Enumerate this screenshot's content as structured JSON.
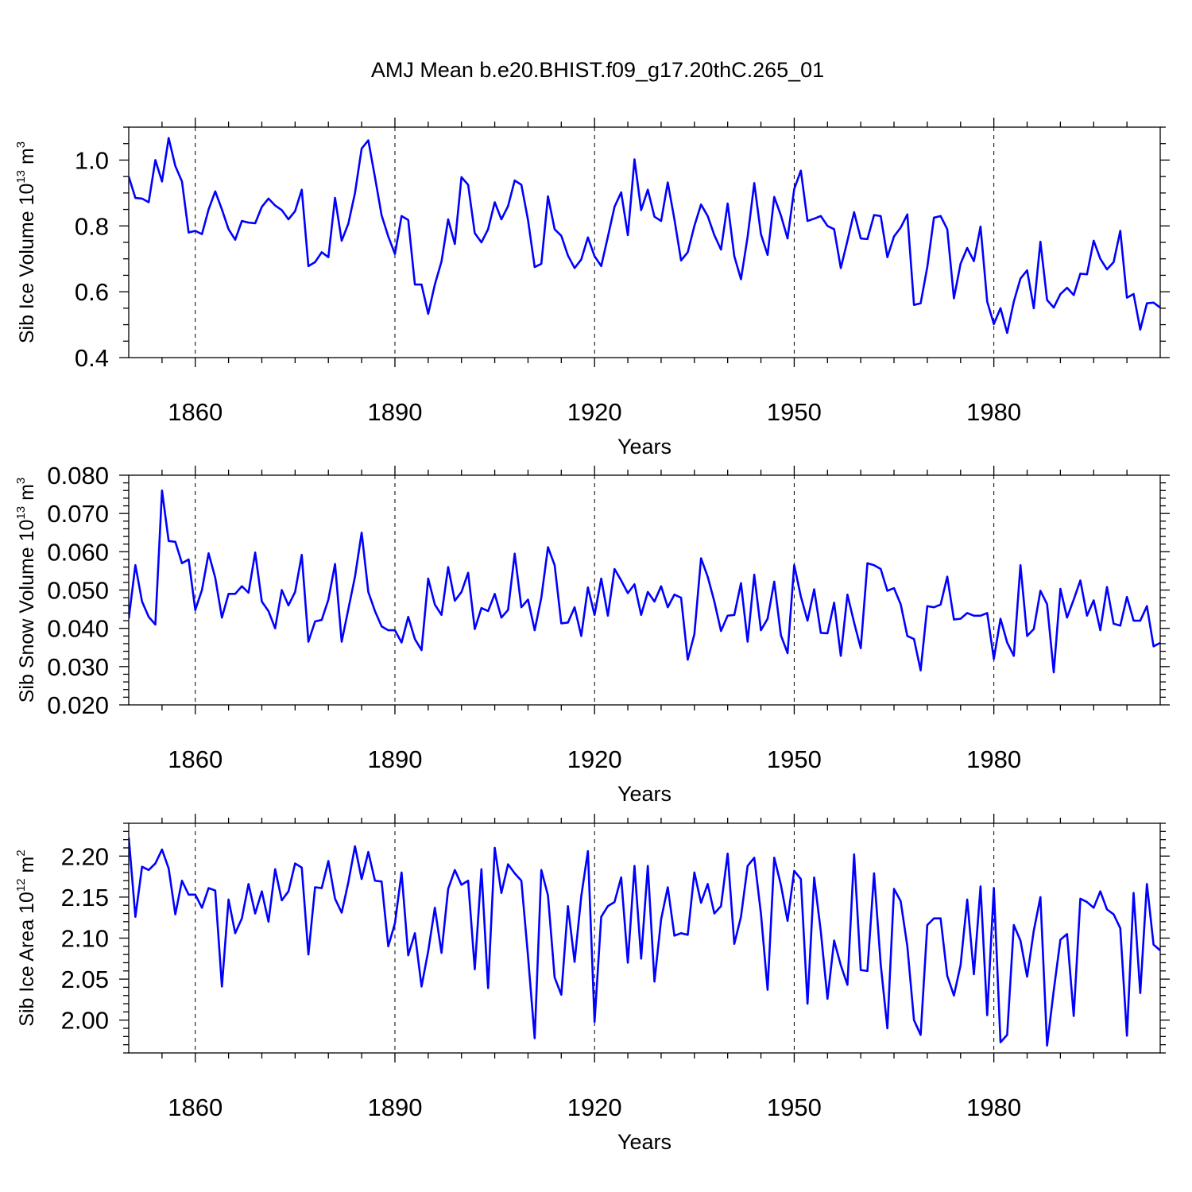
{
  "title": "AMJ Mean b.e20.BHIST.f09_g17.20thC.265_01",
  "chart_data": [
    {
      "type": "line",
      "title": "AMJ Mean b.e20.BHIST.f09_g17.20thC.265_01",
      "xlabel": "Years",
      "ylabel": "Sib Ice Volume 10",
      "ylabel_exp": "13",
      "ylabel_unit": " m",
      "ylabel_unit_exp": "3",
      "xlim": [
        1850,
        2005
      ],
      "ylim": [
        0.4,
        1.1
      ],
      "x_start": 1850,
      "xticks": [
        1860,
        1890,
        1920,
        1950,
        1980
      ],
      "xtick_labels": [
        "1860",
        "1890",
        "1920",
        "1950",
        "1980"
      ],
      "yticks": [
        0.4,
        0.6,
        0.8,
        1.0
      ],
      "ytick_labels": [
        "0.4",
        "0.6",
        "0.8",
        "1.0"
      ],
      "yminor": 0.05,
      "color": "#0000ff",
      "values": [
        0.95,
        0.885,
        0.883,
        0.872,
        1.0,
        0.935,
        1.067,
        0.982,
        0.935,
        0.78,
        0.785,
        0.775,
        0.85,
        0.905,
        0.85,
        0.79,
        0.758,
        0.815,
        0.81,
        0.808,
        0.858,
        0.883,
        0.862,
        0.848,
        0.82,
        0.845,
        0.91,
        0.678,
        0.69,
        0.72,
        0.705,
        0.885,
        0.755,
        0.807,
        0.9,
        1.035,
        1.06,
        0.948,
        0.832,
        0.768,
        0.715,
        0.83,
        0.818,
        0.622,
        0.622,
        0.533,
        0.622,
        0.692,
        0.82,
        0.745,
        0.948,
        0.925,
        0.778,
        0.75,
        0.79,
        0.872,
        0.82,
        0.86,
        0.938,
        0.925,
        0.818,
        0.675,
        0.685,
        0.89,
        0.79,
        0.77,
        0.71,
        0.672,
        0.698,
        0.765,
        0.708,
        0.678,
        0.767,
        0.858,
        0.902,
        0.772,
        1.002,
        0.848,
        0.91,
        0.828,
        0.815,
        0.932,
        0.82,
        0.695,
        0.72,
        0.8,
        0.865,
        0.83,
        0.772,
        0.728,
        0.868,
        0.708,
        0.638,
        0.767,
        0.93,
        0.775,
        0.712,
        0.888,
        0.832,
        0.762,
        0.912,
        0.968,
        0.815,
        0.822,
        0.83,
        0.8,
        0.79,
        0.672,
        0.755,
        0.842,
        0.762,
        0.76,
        0.833,
        0.83,
        0.705,
        0.768,
        0.795,
        0.835,
        0.56,
        0.565,
        0.675,
        0.825,
        0.83,
        0.79,
        0.58,
        0.685,
        0.733,
        0.693,
        0.798,
        0.57,
        0.502,
        0.55,
        0.475,
        0.57,
        0.64,
        0.665,
        0.55,
        0.752,
        0.575,
        0.552,
        0.593,
        0.612,
        0.59,
        0.655,
        0.653,
        0.755,
        0.7,
        0.668,
        0.69,
        0.785,
        0.582,
        0.593,
        0.485,
        0.565,
        0.567,
        0.552
      ]
    },
    {
      "type": "line",
      "xlabel": "Years",
      "ylabel": "Sib Snow Volume 10",
      "ylabel_exp": "13",
      "ylabel_unit": " m",
      "ylabel_unit_exp": "3",
      "xlim": [
        1850,
        2005
      ],
      "ylim": [
        0.02,
        0.08
      ],
      "x_start": 1850,
      "xticks": [
        1860,
        1890,
        1920,
        1950,
        1980
      ],
      "xtick_labels": [
        "1860",
        "1890",
        "1920",
        "1950",
        "1980"
      ],
      "yticks": [
        0.02,
        0.03,
        0.04,
        0.05,
        0.06,
        0.07,
        0.08
      ],
      "ytick_labels": [
        "0.020",
        "0.030",
        "0.040",
        "0.050",
        "0.060",
        "0.070",
        "0.080"
      ],
      "yminor": 0.002,
      "color": "#0000ff",
      "values": [
        0.0425,
        0.0565,
        0.047,
        0.043,
        0.041,
        0.076,
        0.0628,
        0.0626,
        0.057,
        0.058,
        0.0448,
        0.05,
        0.0596,
        0.0532,
        0.0428,
        0.049,
        0.049,
        0.051,
        0.0493,
        0.0598,
        0.047,
        0.0445,
        0.04,
        0.05,
        0.046,
        0.0495,
        0.0592,
        0.0365,
        0.0418,
        0.0422,
        0.0475,
        0.0568,
        0.0365,
        0.045,
        0.0535,
        0.065,
        0.0495,
        0.0445,
        0.0405,
        0.0395,
        0.0395,
        0.0363,
        0.043,
        0.0372,
        0.0343,
        0.053,
        0.0462,
        0.0435,
        0.056,
        0.0472,
        0.0495,
        0.0545,
        0.0398,
        0.0453,
        0.0445,
        0.049,
        0.0428,
        0.0448,
        0.0595,
        0.0455,
        0.0475,
        0.0395,
        0.048,
        0.0612,
        0.0565,
        0.0413,
        0.0415,
        0.0455,
        0.038,
        0.0507,
        0.0435,
        0.053,
        0.0433,
        0.0555,
        0.0525,
        0.0492,
        0.0515,
        0.0435,
        0.0495,
        0.047,
        0.051,
        0.0455,
        0.0488,
        0.048,
        0.0318,
        0.0385,
        0.0583,
        0.0535,
        0.047,
        0.0393,
        0.0433,
        0.0435,
        0.0518,
        0.0365,
        0.054,
        0.0395,
        0.0425,
        0.0522,
        0.0382,
        0.0335,
        0.0565,
        0.0483,
        0.042,
        0.0502,
        0.0388,
        0.0387,
        0.0467,
        0.0328,
        0.0488,
        0.0415,
        0.0348,
        0.057,
        0.0565,
        0.0555,
        0.0498,
        0.0505,
        0.0463,
        0.038,
        0.0372,
        0.029,
        0.0458,
        0.0455,
        0.0462,
        0.0535,
        0.0423,
        0.0425,
        0.044,
        0.0433,
        0.0433,
        0.044,
        0.032,
        0.0425,
        0.0363,
        0.0328,
        0.0565,
        0.038,
        0.0398,
        0.0498,
        0.0463,
        0.0285,
        0.0503,
        0.0428,
        0.0475,
        0.0525,
        0.0433,
        0.0473,
        0.0395,
        0.0508,
        0.0412,
        0.0407,
        0.0482,
        0.042,
        0.042,
        0.0458,
        0.0353,
        0.0362
      ]
    },
    {
      "type": "line",
      "xlabel": "Years",
      "ylabel": "Sib Ice Area 10",
      "ylabel_exp": "12",
      "ylabel_unit": " m",
      "ylabel_unit_exp": "2",
      "xlim": [
        1850,
        2005
      ],
      "ylim": [
        1.96,
        2.24
      ],
      "x_start": 1850,
      "xticks": [
        1860,
        1890,
        1920,
        1950,
        1980
      ],
      "xtick_labels": [
        "1860",
        "1890",
        "1920",
        "1950",
        "1980"
      ],
      "yticks": [
        2.0,
        2.05,
        2.1,
        2.15,
        2.2
      ],
      "ytick_labels": [
        "2.00",
        "2.05",
        "2.10",
        "2.15",
        "2.20"
      ],
      "yminor": 0.01,
      "color": "#0000ff",
      "values": [
        2.223,
        2.126,
        2.187,
        2.183,
        2.191,
        2.208,
        2.185,
        2.129,
        2.17,
        2.153,
        2.153,
        2.137,
        2.161,
        2.158,
        2.041,
        2.147,
        2.106,
        2.124,
        2.166,
        2.13,
        2.157,
        2.12,
        2.184,
        2.146,
        2.157,
        2.191,
        2.186,
        2.08,
        2.162,
        2.161,
        2.194,
        2.148,
        2.131,
        2.168,
        2.212,
        2.172,
        2.205,
        2.17,
        2.169,
        2.09,
        2.118,
        2.18,
        2.079,
        2.106,
        2.041,
        2.084,
        2.137,
        2.082,
        2.16,
        2.183,
        2.165,
        2.17,
        2.062,
        2.184,
        2.039,
        2.21,
        2.155,
        2.19,
        2.179,
        2.17,
        2.078,
        1.978,
        2.183,
        2.152,
        2.052,
        2.031,
        2.139,
        2.071,
        2.151,
        2.206,
        1.998,
        2.126,
        2.139,
        2.144,
        2.174,
        2.07,
        2.188,
        2.075,
        2.188,
        2.047,
        2.123,
        2.162,
        2.103,
        2.106,
        2.104,
        2.18,
        2.143,
        2.166,
        2.13,
        2.139,
        2.203,
        2.093,
        2.126,
        2.188,
        2.198,
        2.13,
        2.037,
        2.198,
        2.165,
        2.121,
        2.182,
        2.172,
        2.02,
        2.174,
        2.108,
        2.026,
        2.097,
        2.067,
        2.043,
        2.202,
        2.061,
        2.06,
        2.179,
        2.068,
        1.99,
        2.16,
        2.145,
        2.09,
        2.0,
        1.982,
        2.116,
        2.124,
        2.124,
        2.054,
        2.03,
        2.067,
        2.147,
        2.056,
        2.163,
        2.006,
        2.161,
        1.973,
        1.982,
        2.116,
        2.097,
        2.053,
        2.109,
        2.15,
        1.969,
        2.036,
        2.098,
        2.105,
        2.005,
        2.148,
        2.144,
        2.137,
        2.157,
        2.135,
        2.129,
        2.112,
        1.981,
        2.155,
        2.033,
        2.166,
        2.092,
        2.085
      ]
    }
  ]
}
